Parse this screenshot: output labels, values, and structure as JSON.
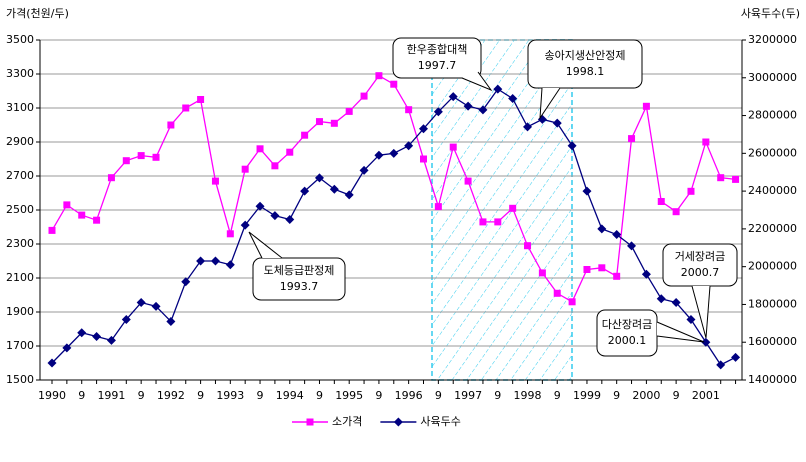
{
  "chart_data": {
    "type": "line",
    "ylabel": "가격(천원/두)",
    "y2label": "사육두수(두)",
    "categories": [
      "1990",
      null,
      "9",
      null,
      "1991",
      null,
      "9",
      null,
      "1992",
      null,
      "9",
      null,
      "1993",
      null,
      "9",
      null,
      "1994",
      null,
      "9",
      null,
      "1995",
      null,
      "9",
      null,
      "1996",
      null,
      "9",
      null,
      "1997",
      null,
      "9",
      null,
      "1998",
      null,
      "9",
      null,
      "1999",
      null,
      "9",
      null,
      "2000",
      null,
      "9",
      null,
      "2001",
      null,
      null
    ],
    "series": [
      {
        "name": "소가격",
        "color": "#ff00ff",
        "marker": "square",
        "values": [
          2380,
          2530,
          2470,
          2440,
          2690,
          2790,
          2820,
          2810,
          3000,
          3100,
          3150,
          2670,
          2360,
          2740,
          2860,
          2760,
          2840,
          2940,
          3020,
          3010,
          3080,
          3170,
          3290,
          3240,
          3090,
          2800,
          2520,
          2870,
          2670,
          2430,
          2430,
          2510,
          2290,
          2130,
          2010,
          1960,
          2150,
          2160,
          2110,
          2920,
          3110,
          2550,
          2490,
          2610,
          2900,
          2690,
          2680
        ]
      },
      {
        "name": "사육두수",
        "color": "#000080",
        "marker": "diamond",
        "axis": "y2",
        "values": [
          1490000,
          1570000,
          1650000,
          1630000,
          1610000,
          1720000,
          1810000,
          1790000,
          1710000,
          1920000,
          2030000,
          2030000,
          2010000,
          2220000,
          2320000,
          2270000,
          2250000,
          2400000,
          2470000,
          2410000,
          2380000,
          2510000,
          2590000,
          2600000,
          2640000,
          2730000,
          2820000,
          2900000,
          2850000,
          2830000,
          2940000,
          2890000,
          2740000,
          2780000,
          2760000,
          2640000,
          2400000,
          2200000,
          2170000,
          2110000,
          1960000,
          1830000,
          1810000,
          1720000,
          1600000,
          1480000,
          1520000
        ]
      }
    ],
    "ylim": [
      1500,
      3500
    ],
    "yticks": [
      1500,
      1700,
      1900,
      2100,
      2300,
      2500,
      2700,
      2900,
      3100,
      3300,
      3500
    ],
    "y2lim": [
      1400000,
      3200000
    ],
    "y2ticks": [
      1400000,
      1600000,
      1800000,
      2000000,
      2200000,
      2400000,
      2600000,
      2800000,
      3000000,
      3200000
    ],
    "grid": true,
    "legend": "bottom",
    "annotations": [
      {
        "lines": [
          "도체등급판정제",
          "1993.7"
        ]
      },
      {
        "lines": [
          "한우종합대책",
          "1997.7"
        ]
      },
      {
        "lines": [
          "송아지생산안정제",
          "1998.1"
        ]
      },
      {
        "lines": [
          "다산장려금",
          "2000.1"
        ]
      },
      {
        "lines": [
          "거세장려금",
          "2000.7"
        ]
      }
    ]
  }
}
